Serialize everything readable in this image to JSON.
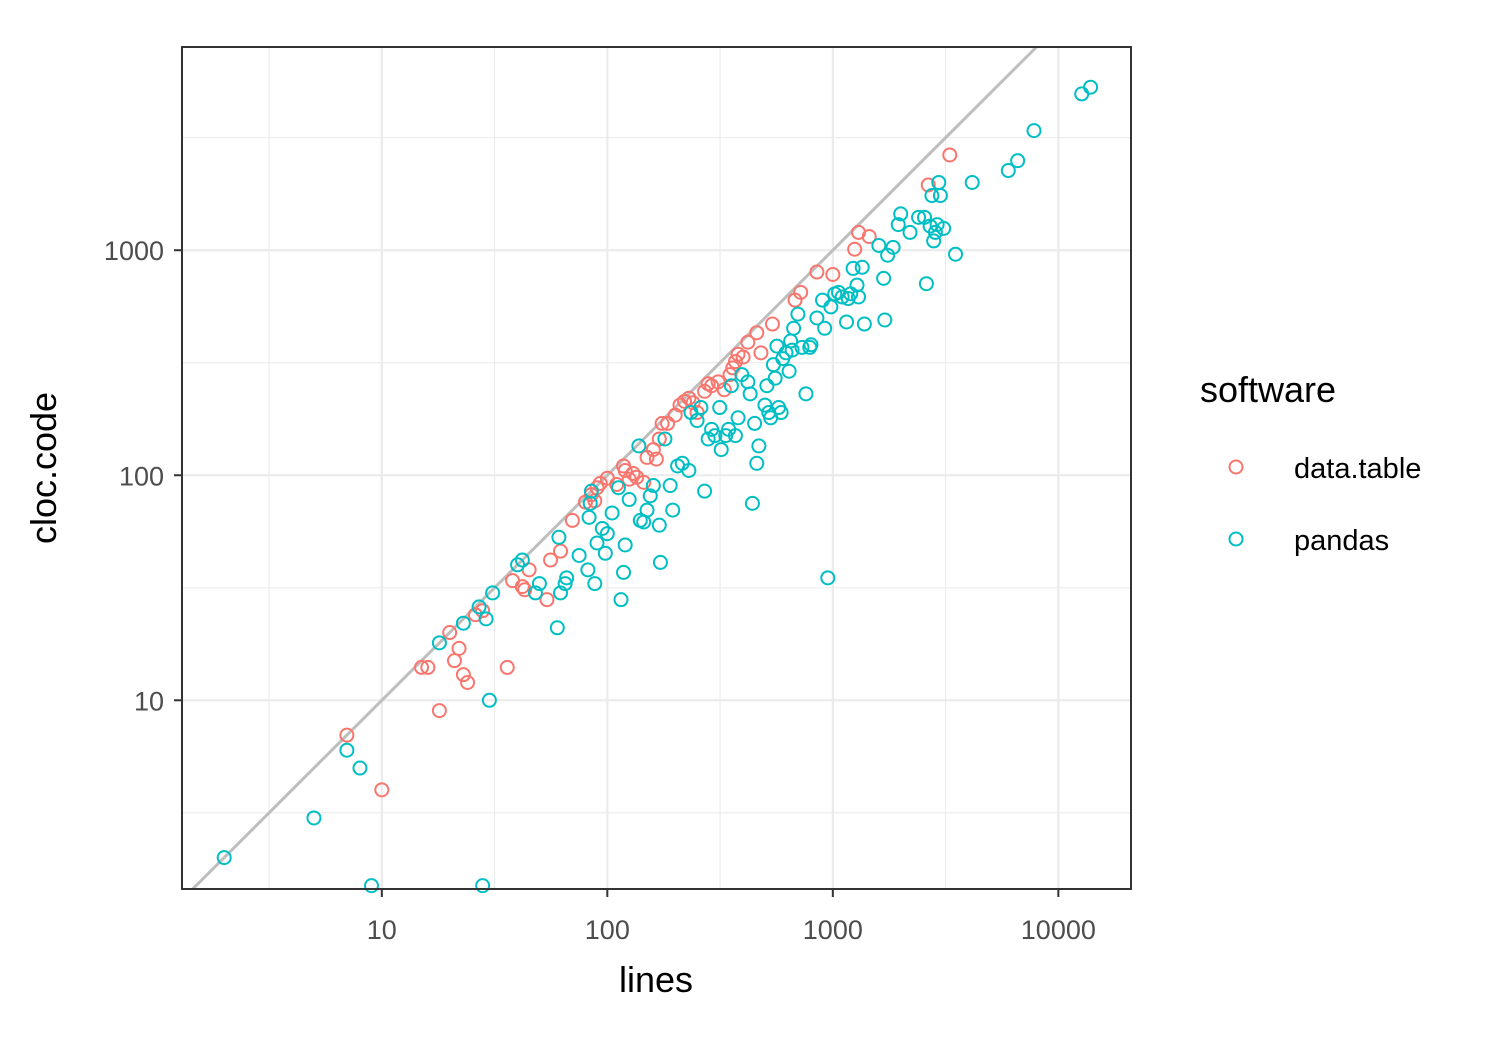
{
  "chart_data": {
    "type": "scatter",
    "xlabel": "lines",
    "ylabel": "cloc.code",
    "x_scale": "log10",
    "y_scale": "log10",
    "xlim": [
      1.3,
      21000
    ],
    "ylim": [
      1.45,
      8000
    ],
    "x_ticks": [
      10,
      100,
      1000,
      10000
    ],
    "x_tick_labels": [
      "10",
      "100",
      "1000",
      "10000"
    ],
    "y_ticks": [
      10,
      100,
      1000
    ],
    "y_tick_labels": [
      "10",
      "100",
      "1000"
    ],
    "grid": true,
    "reference_line": "y = x",
    "legend": {
      "title": "software",
      "placement": "right",
      "entries": [
        {
          "label": "data.table",
          "color": "#F8766D"
        },
        {
          "label": "pandas",
          "color": "#00BFC4"
        }
      ]
    },
    "series": [
      {
        "name": "data.table",
        "color": "#F8766D",
        "points": [
          [
            7,
            7
          ],
          [
            10,
            4
          ],
          [
            15,
            14
          ],
          [
            16,
            14
          ],
          [
            18,
            9
          ],
          [
            20,
            20
          ],
          [
            21,
            15
          ],
          [
            22,
            17
          ],
          [
            23,
            13
          ],
          [
            24,
            12
          ],
          [
            26,
            24
          ],
          [
            28,
            25
          ],
          [
            36,
            14
          ],
          [
            38,
            34
          ],
          [
            42,
            32
          ],
          [
            43,
            31
          ],
          [
            45,
            38
          ],
          [
            54,
            28
          ],
          [
            56,
            42
          ],
          [
            62,
            46
          ],
          [
            70,
            63
          ],
          [
            80,
            76
          ],
          [
            85,
            82
          ],
          [
            88,
            77
          ],
          [
            90,
            88
          ],
          [
            93,
            92
          ],
          [
            100,
            97
          ],
          [
            110,
            91
          ],
          [
            118,
            110
          ],
          [
            120,
            105
          ],
          [
            125,
            96
          ],
          [
            130,
            102
          ],
          [
            135,
            98
          ],
          [
            145,
            93
          ],
          [
            150,
            120
          ],
          [
            160,
            130
          ],
          [
            165,
            118
          ],
          [
            170,
            145
          ],
          [
            175,
            170
          ],
          [
            185,
            170
          ],
          [
            200,
            185
          ],
          [
            210,
            205
          ],
          [
            220,
            213
          ],
          [
            230,
            220
          ],
          [
            240,
            210
          ],
          [
            250,
            190
          ],
          [
            270,
            236
          ],
          [
            280,
            255
          ],
          [
            290,
            250
          ],
          [
            310,
            260
          ],
          [
            330,
            240
          ],
          [
            350,
            280
          ],
          [
            360,
            300
          ],
          [
            370,
            320
          ],
          [
            380,
            345
          ],
          [
            400,
            335
          ],
          [
            420,
            390
          ],
          [
            460,
            430
          ],
          [
            480,
            350
          ],
          [
            540,
            470
          ],
          [
            680,
            600
          ],
          [
            720,
            650
          ],
          [
            850,
            800
          ],
          [
            1000,
            780
          ],
          [
            1250,
            1010
          ],
          [
            1300,
            1200
          ],
          [
            1450,
            1150
          ],
          [
            2650,
            1950
          ],
          [
            3300,
            2650
          ]
        ]
      },
      {
        "name": "pandas",
        "color": "#00BFC4",
        "points": [
          [
            2,
            2
          ],
          [
            5,
            3
          ],
          [
            7,
            6
          ],
          [
            8,
            5
          ],
          [
            9,
            1.5
          ],
          [
            18,
            18
          ],
          [
            23,
            22
          ],
          [
            27,
            26
          ],
          [
            28,
            1.5
          ],
          [
            29,
            23
          ],
          [
            30,
            10
          ],
          [
            31,
            30
          ],
          [
            40,
            40
          ],
          [
            42,
            42
          ],
          [
            48,
            30
          ],
          [
            50,
            33
          ],
          [
            60,
            21
          ],
          [
            61,
            53
          ],
          [
            62,
            30
          ],
          [
            65,
            33
          ],
          [
            66,
            35
          ],
          [
            75,
            44
          ],
          [
            82,
            38
          ],
          [
            83,
            65
          ],
          [
            84,
            75
          ],
          [
            85,
            85
          ],
          [
            88,
            33
          ],
          [
            90,
            50
          ],
          [
            95,
            58
          ],
          [
            98,
            45
          ],
          [
            100,
            55
          ],
          [
            105,
            68
          ],
          [
            112,
            88
          ],
          [
            115,
            28
          ],
          [
            118,
            37
          ],
          [
            120,
            49
          ],
          [
            125,
            78
          ],
          [
            138,
            135
          ],
          [
            140,
            63
          ],
          [
            145,
            62
          ],
          [
            150,
            70
          ],
          [
            155,
            81
          ],
          [
            160,
            90
          ],
          [
            170,
            60
          ],
          [
            172,
            41
          ],
          [
            180,
            145
          ],
          [
            190,
            90
          ],
          [
            195,
            70
          ],
          [
            205,
            110
          ],
          [
            215,
            113
          ],
          [
            230,
            105
          ],
          [
            235,
            190
          ],
          [
            250,
            175
          ],
          [
            260,
            200
          ],
          [
            270,
            85
          ],
          [
            280,
            145
          ],
          [
            290,
            160
          ],
          [
            300,
            150
          ],
          [
            315,
            200
          ],
          [
            320,
            130
          ],
          [
            335,
            150
          ],
          [
            345,
            160
          ],
          [
            355,
            250
          ],
          [
            370,
            150
          ],
          [
            380,
            180
          ],
          [
            395,
            280
          ],
          [
            420,
            260
          ],
          [
            430,
            230
          ],
          [
            440,
            75
          ],
          [
            450,
            170
          ],
          [
            460,
            113
          ],
          [
            470,
            135
          ],
          [
            500,
            205
          ],
          [
            510,
            250
          ],
          [
            520,
            190
          ],
          [
            530,
            180
          ],
          [
            545,
            310
          ],
          [
            555,
            270
          ],
          [
            565,
            375
          ],
          [
            575,
            200
          ],
          [
            590,
            190
          ],
          [
            600,
            330
          ],
          [
            620,
            350
          ],
          [
            640,
            290
          ],
          [
            650,
            395
          ],
          [
            660,
            360
          ],
          [
            670,
            450
          ],
          [
            700,
            520
          ],
          [
            730,
            370
          ],
          [
            760,
            230
          ],
          [
            790,
            370
          ],
          [
            800,
            380
          ],
          [
            850,
            500
          ],
          [
            900,
            600
          ],
          [
            920,
            450
          ],
          [
            950,
            35
          ],
          [
            980,
            560
          ],
          [
            1020,
            640
          ],
          [
            1060,
            650
          ],
          [
            1100,
            620
          ],
          [
            1150,
            480
          ],
          [
            1170,
            610
          ],
          [
            1200,
            640
          ],
          [
            1230,
            830
          ],
          [
            1280,
            700
          ],
          [
            1300,
            620
          ],
          [
            1350,
            840
          ],
          [
            1380,
            470
          ],
          [
            1600,
            1050
          ],
          [
            1680,
            750
          ],
          [
            1700,
            490
          ],
          [
            1750,
            950
          ],
          [
            1850,
            1030
          ],
          [
            1950,
            1300
          ],
          [
            2000,
            1450
          ],
          [
            2200,
            1200
          ],
          [
            2400,
            1400
          ],
          [
            2550,
            1400
          ],
          [
            2600,
            710
          ],
          [
            2700,
            1280
          ],
          [
            2750,
            1750
          ],
          [
            2800,
            1100
          ],
          [
            2850,
            1200
          ],
          [
            2900,
            1300
          ],
          [
            2950,
            2000
          ],
          [
            3000,
            1750
          ],
          [
            3100,
            1250
          ],
          [
            3500,
            960
          ],
          [
            4150,
            2000
          ],
          [
            6000,
            2260
          ],
          [
            6600,
            2500
          ],
          [
            7800,
            3400
          ],
          [
            12700,
            4950
          ],
          [
            13900,
            5300
          ]
        ]
      }
    ]
  }
}
